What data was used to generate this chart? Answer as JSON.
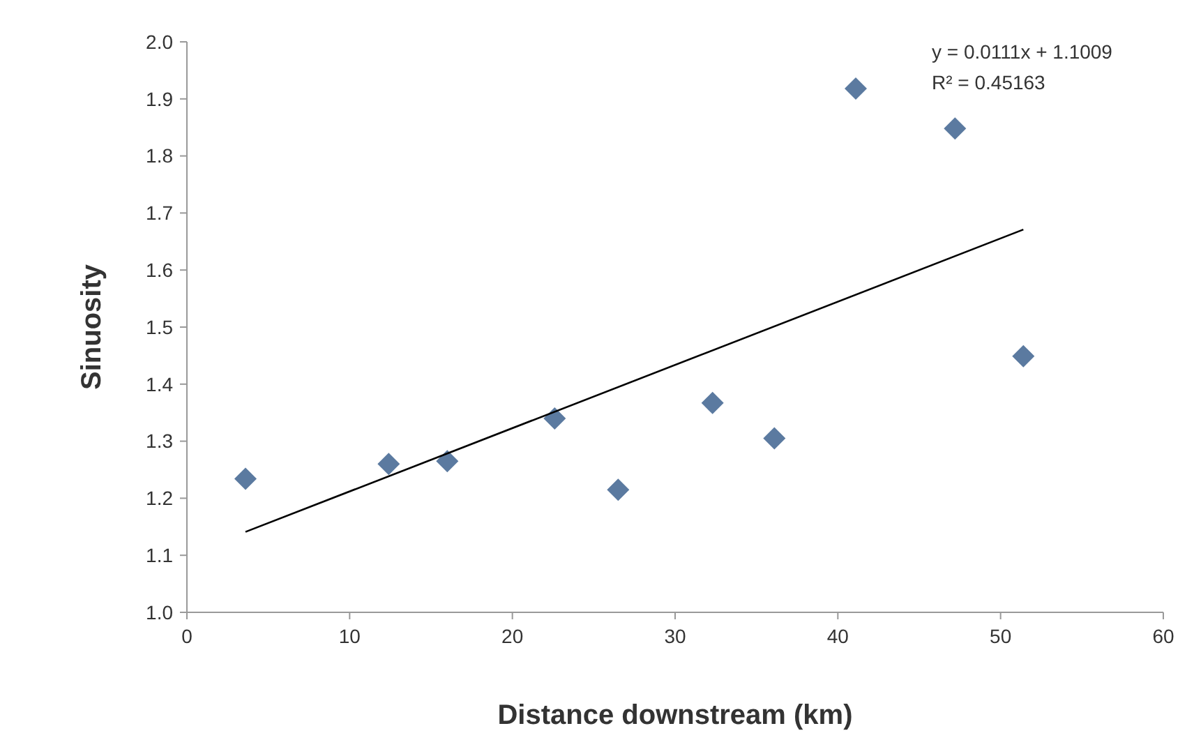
{
  "chart_data": {
    "type": "scatter",
    "xlabel": "Distance downstream (km)",
    "ylabel": "Sinuosity",
    "xlim": [
      0,
      60
    ],
    "xticks": [
      0,
      10,
      20,
      30,
      40,
      50,
      60
    ],
    "ylim": [
      1,
      2
    ],
    "yticks": [
      {
        "value": 1,
        "label": "1.0"
      },
      {
        "value": 1.1,
        "label": "1.1"
      },
      {
        "value": 1.2,
        "label": "1.2"
      },
      {
        "value": 1.3,
        "label": "1.3"
      },
      {
        "value": 1.4,
        "label": "1.4"
      },
      {
        "value": 1.5,
        "label": "1.5"
      },
      {
        "value": 1.6,
        "label": "1.6"
      },
      {
        "value": 1.7,
        "label": "1.7"
      },
      {
        "value": 1.8,
        "label": "1.8"
      },
      {
        "value": 1.9,
        "label": "1.9"
      },
      {
        "value": 2,
        "label": "2.0"
      }
    ],
    "annotations": [
      "y = 0.0111x + 1.1009",
      "R² = 0.45163"
    ],
    "series": [
      {
        "marker": "diamond",
        "color": "#5b7aa0",
        "x": [
          3.6,
          12.4,
          16.0,
          22.6,
          26.5,
          32.3,
          36.1,
          41.1,
          47.2,
          51.4
        ],
        "values": [
          1.234,
          1.26,
          1.265,
          1.34,
          1.215,
          1.367,
          1.305,
          1.918,
          1.848,
          1.449
        ]
      },
      {
        "type": "line",
        "marker": "none",
        "color": "#000000",
        "x": [
          3.6,
          51.4
        ],
        "values": [
          1.141,
          1.671
        ]
      }
    ]
  }
}
